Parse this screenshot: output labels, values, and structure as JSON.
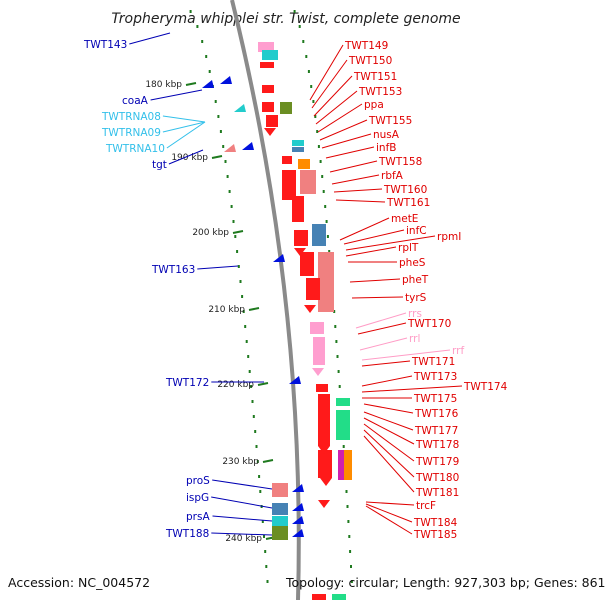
{
  "title": "Tropheryma whipplei str. Twist, complete genome",
  "accession": "Accession: NC_004572",
  "summary": "Topology: circular; Length: 927,303 bp; Genes: 861",
  "colors": {
    "backbone": "#8a8a8a",
    "tick": "#1f7a1f",
    "left_label": "#0000b3",
    "rna_label": "#33c0ea",
    "right_label": "#e00000",
    "rrna_label": "#ff9cc6",
    "gene_red": "#ff1a1a",
    "gene_pink": "#ff9ecf",
    "gene_blue": "#0011dd",
    "gene_cyan": "#22cccc",
    "gene_olive": "#6b8e23",
    "gene_orange": "#ff8c00",
    "gene_steel": "#4682b4",
    "gene_salmon": "#f08080",
    "gene_green": "#22dd88",
    "gene_magenta": "#d020b0"
  },
  "kbp_labels": [
    "180 kbp",
    "190 kbp",
    "200 kbp",
    "210 kbp",
    "220 kbp",
    "230 kbp",
    "240 kbp"
  ],
  "left_labels": [
    {
      "text": "TWT143",
      "kind": "gene"
    },
    {
      "text": "coaA",
      "kind": "gene"
    },
    {
      "text": "TWTRNA08",
      "kind": "rna"
    },
    {
      "text": "TWTRNA09",
      "kind": "rna"
    },
    {
      "text": "TWTRNA10",
      "kind": "rna"
    },
    {
      "text": "tgt",
      "kind": "gene"
    },
    {
      "text": "TWT163",
      "kind": "gene"
    },
    {
      "text": "TWT172",
      "kind": "gene"
    },
    {
      "text": "proS",
      "kind": "gene"
    },
    {
      "text": "ispG",
      "kind": "gene"
    },
    {
      "text": "prsA",
      "kind": "gene"
    },
    {
      "text": "TWT188",
      "kind": "gene"
    }
  ],
  "right_labels": [
    {
      "text": "TWT149",
      "kind": "gene"
    },
    {
      "text": "TWT150",
      "kind": "gene"
    },
    {
      "text": "TWT151",
      "kind": "gene"
    },
    {
      "text": "TWT153",
      "kind": "gene"
    },
    {
      "text": "ppa",
      "kind": "gene"
    },
    {
      "text": "TWT155",
      "kind": "gene"
    },
    {
      "text": "nusA",
      "kind": "gene"
    },
    {
      "text": "infB",
      "kind": "gene"
    },
    {
      "text": "TWT158",
      "kind": "gene"
    },
    {
      "text": "rbfA",
      "kind": "gene"
    },
    {
      "text": "TWT160",
      "kind": "gene"
    },
    {
      "text": "TWT161",
      "kind": "gene"
    },
    {
      "text": "metE",
      "kind": "gene"
    },
    {
      "text": "infC",
      "kind": "gene"
    },
    {
      "text": "rpmI",
      "kind": "gene"
    },
    {
      "text": "rplT",
      "kind": "gene"
    },
    {
      "text": "pheS",
      "kind": "gene"
    },
    {
      "text": "pheT",
      "kind": "gene"
    },
    {
      "text": "tyrS",
      "kind": "gene"
    },
    {
      "text": "rrs",
      "kind": "rrna"
    },
    {
      "text": "TWT170",
      "kind": "gene"
    },
    {
      "text": "rrl",
      "kind": "rrna"
    },
    {
      "text": "rrf",
      "kind": "rrna"
    },
    {
      "text": "TWT171",
      "kind": "gene"
    },
    {
      "text": "TWT173",
      "kind": "gene"
    },
    {
      "text": "TWT174",
      "kind": "gene"
    },
    {
      "text": "TWT175",
      "kind": "gene"
    },
    {
      "text": "TWT176",
      "kind": "gene"
    },
    {
      "text": "TWT177",
      "kind": "gene"
    },
    {
      "text": "TWT178",
      "kind": "gene"
    },
    {
      "text": "TWT179",
      "kind": "gene"
    },
    {
      "text": "TWT180",
      "kind": "gene"
    },
    {
      "text": "TWT181",
      "kind": "gene"
    },
    {
      "text": "trcF",
      "kind": "gene"
    },
    {
      "text": "TWT184",
      "kind": "gene"
    },
    {
      "text": "TWT185",
      "kind": "gene"
    }
  ]
}
